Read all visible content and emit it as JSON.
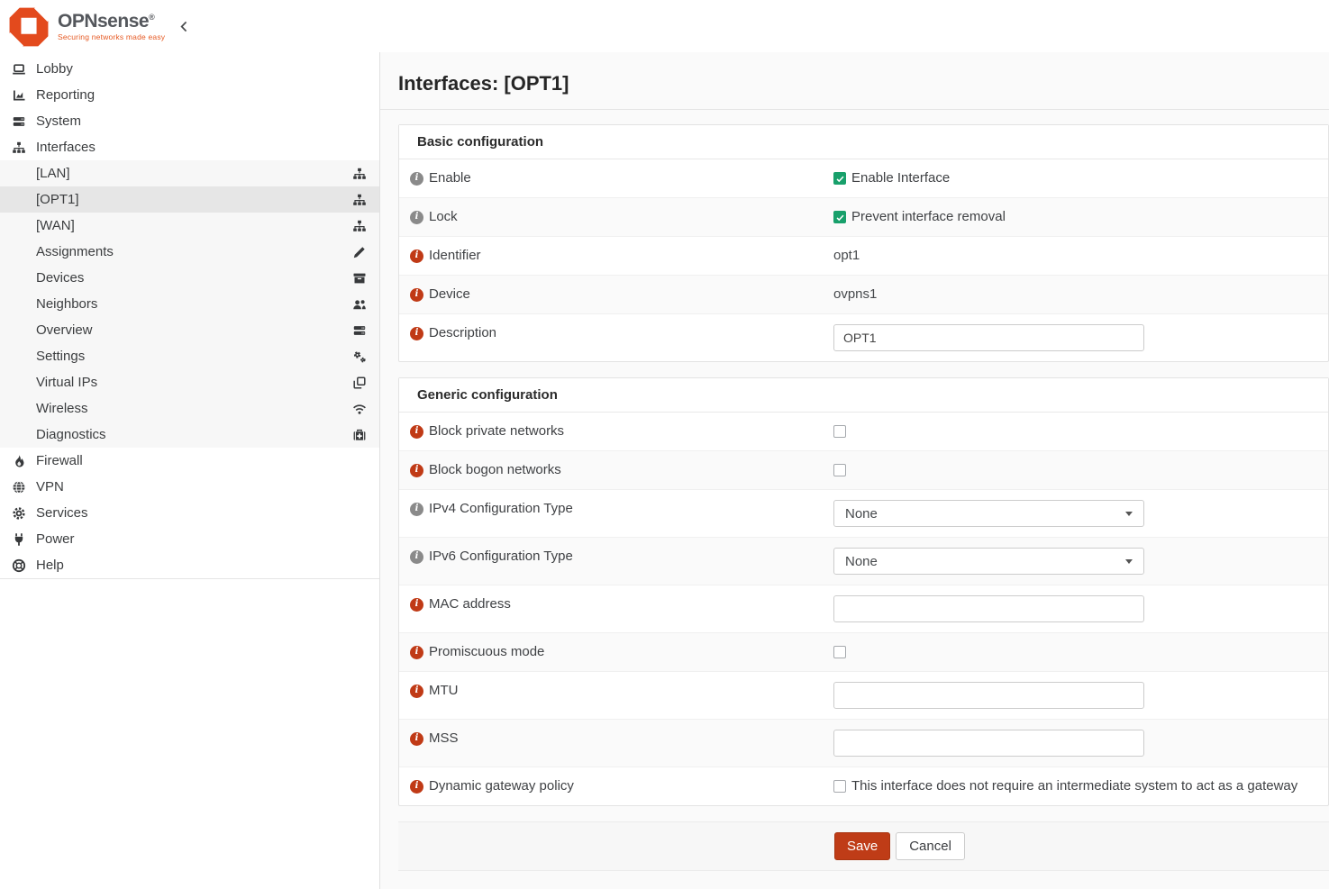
{
  "header": {
    "logo_text": "OPNsense",
    "logo_reg": "®",
    "logo_tagline": "Securing networks made easy",
    "collapse_icon": "chevron-left-icon"
  },
  "sidebar": {
    "items": [
      {
        "label": "Lobby",
        "icon": "laptop-icon",
        "type": "top"
      },
      {
        "label": "Reporting",
        "icon": "chart-icon",
        "type": "top"
      },
      {
        "label": "System",
        "icon": "server-icon",
        "type": "top"
      },
      {
        "label": "Interfaces",
        "icon": "sitemap-icon",
        "type": "top",
        "expanded": true
      },
      {
        "label": "[LAN]",
        "icon": "sitemap-icon",
        "type": "sub"
      },
      {
        "label": "[OPT1]",
        "icon": "sitemap-icon",
        "type": "sub",
        "selected": true
      },
      {
        "label": "[WAN]",
        "icon": "sitemap-icon",
        "type": "sub"
      },
      {
        "label": "Assignments",
        "icon": "pencil-icon",
        "type": "sub"
      },
      {
        "label": "Devices",
        "icon": "archive-icon",
        "type": "sub"
      },
      {
        "label": "Neighbors",
        "icon": "users-icon",
        "type": "sub"
      },
      {
        "label": "Overview",
        "icon": "server-icon",
        "type": "sub"
      },
      {
        "label": "Settings",
        "icon": "gears-icon",
        "type": "sub"
      },
      {
        "label": "Virtual IPs",
        "icon": "clone-icon",
        "type": "sub"
      },
      {
        "label": "Wireless",
        "icon": "wifi-icon",
        "type": "sub"
      },
      {
        "label": "Diagnostics",
        "icon": "medkit-icon",
        "type": "sub"
      },
      {
        "label": "Firewall",
        "icon": "fire-icon",
        "type": "top"
      },
      {
        "label": "VPN",
        "icon": "globe-icon",
        "type": "top"
      },
      {
        "label": "Services",
        "icon": "gear-icon",
        "type": "top"
      },
      {
        "label": "Power",
        "icon": "plug-icon",
        "type": "top"
      },
      {
        "label": "Help",
        "icon": "help-icon",
        "type": "top"
      }
    ]
  },
  "page": {
    "title": "Interfaces: [OPT1]"
  },
  "panels": [
    {
      "title": "Basic configuration",
      "rows": [
        {
          "label": "Enable",
          "info": "gray",
          "control": {
            "type": "checkbox",
            "checked": true,
            "text": "Enable Interface"
          }
        },
        {
          "label": "Lock",
          "info": "gray",
          "control": {
            "type": "checkbox",
            "checked": true,
            "text": "Prevent interface removal"
          }
        },
        {
          "label": "Identifier",
          "info": "red",
          "control": {
            "type": "static",
            "text": "opt1"
          }
        },
        {
          "label": "Device",
          "info": "red",
          "control": {
            "type": "static",
            "text": "ovpns1"
          }
        },
        {
          "label": "Description",
          "info": "red",
          "control": {
            "type": "text",
            "value": "OPT1"
          }
        }
      ]
    },
    {
      "title": "Generic configuration",
      "rows": [
        {
          "label": "Block private networks",
          "info": "red",
          "control": {
            "type": "checkbox",
            "checked": false,
            "text": ""
          }
        },
        {
          "label": "Block bogon networks",
          "info": "red",
          "control": {
            "type": "checkbox",
            "checked": false,
            "text": ""
          }
        },
        {
          "label": "IPv4 Configuration Type",
          "info": "gray",
          "control": {
            "type": "select",
            "value": "None"
          }
        },
        {
          "label": "IPv6 Configuration Type",
          "info": "gray",
          "control": {
            "type": "select",
            "value": "None"
          }
        },
        {
          "label": "MAC address",
          "info": "red",
          "control": {
            "type": "text",
            "value": ""
          }
        },
        {
          "label": "Promiscuous mode",
          "info": "red",
          "control": {
            "type": "checkbox",
            "checked": false,
            "text": ""
          }
        },
        {
          "label": "MTU",
          "info": "red",
          "control": {
            "type": "text",
            "value": ""
          }
        },
        {
          "label": "MSS",
          "info": "red",
          "control": {
            "type": "text",
            "value": ""
          }
        },
        {
          "label": "Dynamic gateway policy",
          "info": "red",
          "control": {
            "type": "checkbox",
            "checked": false,
            "text": "This interface does not require an intermediate system to act as a gateway"
          }
        }
      ],
      "footer": {
        "save_label": "Save",
        "cancel_label": "Cancel"
      }
    }
  ],
  "colors": {
    "brand_orange": "#e34a1d",
    "save_button": "#bf3c17",
    "checkbox_green": "#18a06b",
    "info_icon_red": "#c03a16",
    "info_icon_gray": "#8a8a8a",
    "selected_menu_bg": "#e6e6e6",
    "submenu_bg": "#f7f7f7",
    "content_bg": "#fafafa"
  }
}
